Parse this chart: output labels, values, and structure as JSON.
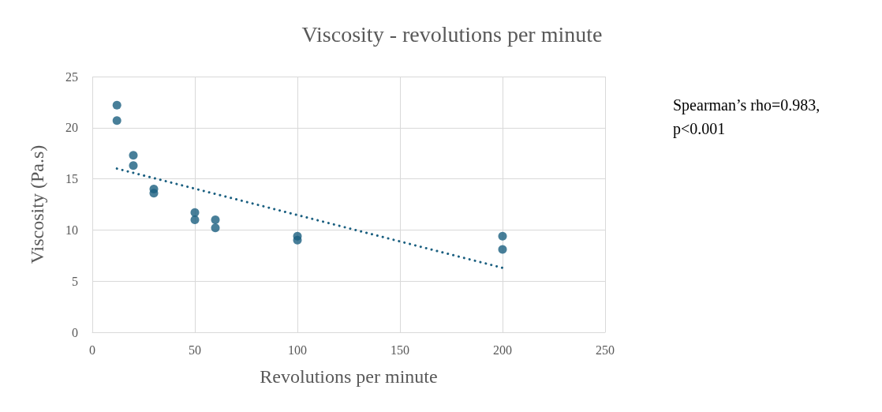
{
  "chart_data": {
    "type": "scatter",
    "title": "Viscosity - revolutions per minute",
    "xlabel": "Revolutions per minute",
    "ylabel": "Viscosity (Pa.s)",
    "annotations": [
      "Spearman’s rho=0.983, p<0.001"
    ],
    "xlim": [
      0,
      250
    ],
    "xticks": [
      0,
      50,
      100,
      150,
      200,
      250
    ],
    "ylim": [
      0,
      25
    ],
    "yticks": [
      0,
      5,
      10,
      15,
      20,
      25
    ],
    "grid": true,
    "marker": "circle",
    "series": [
      {
        "type": "scatter",
        "color": "#1a5f80",
        "x": [
          12,
          12,
          20,
          20,
          30,
          30,
          50,
          50,
          60,
          60,
          100,
          100,
          200,
          200
        ],
        "values": [
          22.2,
          20.7,
          17.3,
          16.3,
          14.0,
          13.6,
          11.7,
          11.0,
          11.0,
          10.2,
          9.4,
          9.0,
          9.4,
          8.1
        ]
      },
      {
        "type": "line",
        "color": "#1a5f80",
        "line_style": "dotted",
        "marker": "none",
        "x": [
          12,
          200
        ],
        "values": [
          16.0,
          6.3
        ]
      }
    ]
  }
}
